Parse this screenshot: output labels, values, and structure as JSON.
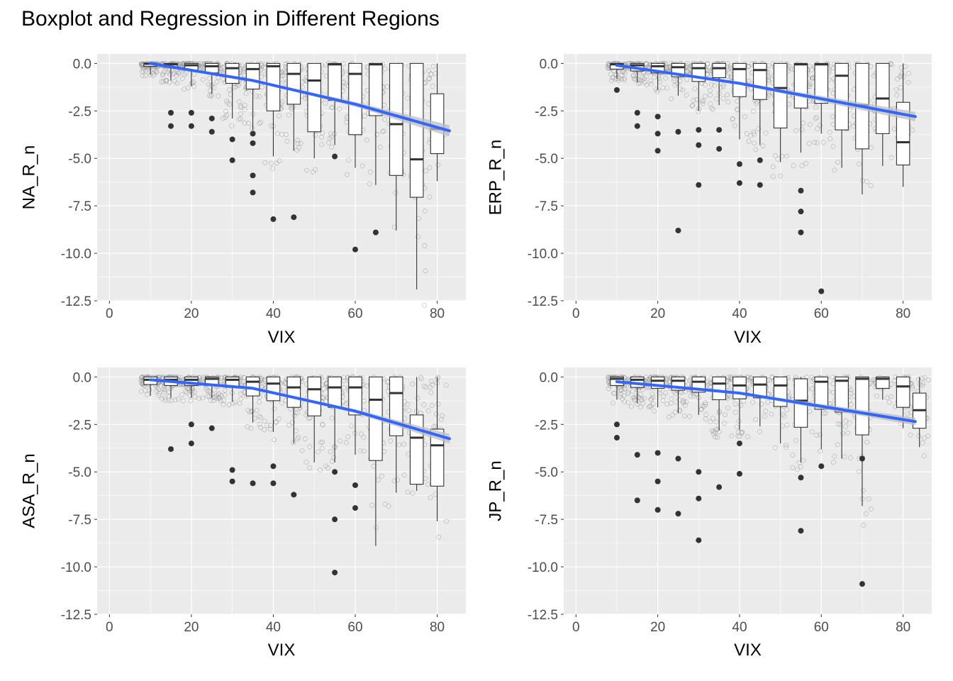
{
  "title": "Boxplot and Regression in Different Regions",
  "colors": {
    "panel_bg": "#ebebeb",
    "grid": "#ffffff",
    "box_fill": "#ffffff",
    "box_line": "#333333",
    "outlier": "#333333",
    "raw_point": "#555555",
    "reg_line": "#3366ff",
    "ci_band": "#bdbdbd",
    "tick_text": "#4d4d4d"
  },
  "chart_data": [
    {
      "type": "boxplot+scatter+regression",
      "name": "na",
      "xlabel": "VIX",
      "ylabel": "NA_R_n",
      "xlim": [
        -3,
        87
      ],
      "ylim": [
        -12.5,
        0.5
      ],
      "x_ticks": [
        0,
        20,
        40,
        60,
        80
      ],
      "x_tick_labels": [
        "0",
        "20",
        "40",
        "60",
        "80"
      ],
      "y_ticks": [
        0,
        -2.5,
        -5,
        -7.5,
        -10,
        -12.5
      ],
      "y_tick_labels": [
        "0.0",
        "-2.5",
        "-5.0",
        "-7.5",
        "-10.0",
        "-12.5"
      ],
      "boxes": [
        {
          "x": 10,
          "q1": -0.15,
          "median": -0.02,
          "q3": 0,
          "whisker_low": -0.6,
          "whisker_high": 0
        },
        {
          "x": 15,
          "q1": -0.2,
          "median": -0.05,
          "q3": 0,
          "whisker_low": -0.9,
          "whisker_high": 0
        },
        {
          "x": 20,
          "q1": -0.35,
          "median": -0.1,
          "q3": 0,
          "whisker_low": -1.2,
          "whisker_high": 0
        },
        {
          "x": 25,
          "q1": -0.5,
          "median": -0.15,
          "q3": 0,
          "whisker_low": -1.6,
          "whisker_high": 0
        },
        {
          "x": 30,
          "q1": -1.05,
          "median": -0.25,
          "q3": 0,
          "whisker_low": -2.9,
          "whisker_high": 0
        },
        {
          "x": 35,
          "q1": -1.35,
          "median": -0.3,
          "q3": 0,
          "whisker_low": -3.5,
          "whisker_high": 0
        },
        {
          "x": 40,
          "q1": -2.5,
          "median": -0.15,
          "q3": 0,
          "whisker_low": -4.9,
          "whisker_high": 0
        },
        {
          "x": 45,
          "q1": -2.15,
          "median": -0.55,
          "q3": 0,
          "whisker_low": -4.6,
          "whisker_high": 0
        },
        {
          "x": 50,
          "q1": -3.6,
          "median": -0.9,
          "q3": 0,
          "whisker_low": -5.0,
          "whisker_high": 0
        },
        {
          "x": 55,
          "q1": -1.95,
          "median": -0.05,
          "q3": 0,
          "whisker_low": -4.3,
          "whisker_high": 0
        },
        {
          "x": 60,
          "q1": -3.75,
          "median": -0.55,
          "q3": 0,
          "whisker_low": -5.5,
          "whisker_high": 0
        },
        {
          "x": 65,
          "q1": -2.75,
          "median": -0.05,
          "q3": 0,
          "whisker_low": -6.4,
          "whisker_high": 0
        },
        {
          "x": 70,
          "q1": -5.9,
          "median": -3.2,
          "q3": 0,
          "whisker_low": -8.8,
          "whisker_high": 0
        },
        {
          "x": 75,
          "q1": -7.05,
          "median": -5.05,
          "q3": 0,
          "whisker_low": -11.9,
          "whisker_high": 0
        },
        {
          "x": 80,
          "q1": -4.75,
          "median": -3.45,
          "q3": -1.6,
          "whisker_low": -6.2,
          "whisker_high": 0
        }
      ],
      "outliers": [
        {
          "x": 15,
          "y": -2.6
        },
        {
          "x": 15,
          "y": -3.3
        },
        {
          "x": 20,
          "y": -2.6
        },
        {
          "x": 20,
          "y": -3.3
        },
        {
          "x": 25,
          "y": -2.9
        },
        {
          "x": 25,
          "y": -3.6
        },
        {
          "x": 30,
          "y": -4.0
        },
        {
          "x": 30,
          "y": -5.1
        },
        {
          "x": 35,
          "y": -3.7
        },
        {
          "x": 35,
          "y": -4.2
        },
        {
          "x": 35,
          "y": -5.9
        },
        {
          "x": 35,
          "y": -6.8
        },
        {
          "x": 40,
          "y": -8.2
        },
        {
          "x": 45,
          "y": -8.1
        },
        {
          "x": 55,
          "y": -4.9
        },
        {
          "x": 60,
          "y": -9.8
        },
        {
          "x": 65,
          "y": -8.9
        }
      ],
      "regression": [
        {
          "x": 10,
          "y": 0.0
        },
        {
          "x": 35,
          "y": -0.9
        },
        {
          "x": 60,
          "y": -2.15
        },
        {
          "x": 83,
          "y": -3.55
        }
      ],
      "ci_halfwidth": [
        0.03,
        0.04,
        0.12,
        0.3
      ]
    },
    {
      "type": "boxplot+scatter+regression",
      "name": "erp",
      "xlabel": "VIX",
      "ylabel": "ERP_R_n",
      "xlim": [
        -3,
        87
      ],
      "ylim": [
        -12.5,
        0.5
      ],
      "x_ticks": [
        0,
        20,
        40,
        60,
        80
      ],
      "x_tick_labels": [
        "0",
        "20",
        "40",
        "60",
        "80"
      ],
      "y_ticks": [
        0,
        -2.5,
        -5,
        -7.5,
        -10,
        -12.5
      ],
      "y_tick_labels": [
        "0.0",
        "-2.5",
        "-5.0",
        "-7.5",
        "-10.0",
        "-12.5"
      ],
      "boxes": [
        {
          "x": 10,
          "q1": -0.3,
          "median": -0.05,
          "q3": 0,
          "whisker_low": -0.8,
          "whisker_high": 0
        },
        {
          "x": 15,
          "q1": -0.4,
          "median": -0.1,
          "q3": 0,
          "whisker_low": -1.0,
          "whisker_high": 0
        },
        {
          "x": 20,
          "q1": -0.5,
          "median": -0.15,
          "q3": 0,
          "whisker_low": -1.4,
          "whisker_high": 0
        },
        {
          "x": 25,
          "q1": -0.7,
          "median": -0.2,
          "q3": 0,
          "whisker_low": -1.7,
          "whisker_high": 0
        },
        {
          "x": 30,
          "q1": -0.95,
          "median": -0.25,
          "q3": 0,
          "whisker_low": -2.5,
          "whisker_high": 0
        },
        {
          "x": 35,
          "q1": -0.75,
          "median": -0.25,
          "q3": 0,
          "whisker_low": -2.2,
          "whisker_high": 0
        },
        {
          "x": 40,
          "q1": -1.75,
          "median": -0.3,
          "q3": 0,
          "whisker_low": -4.0,
          "whisker_high": 0
        },
        {
          "x": 45,
          "q1": -1.9,
          "median": -0.35,
          "q3": 0,
          "whisker_low": -4.3,
          "whisker_high": 0
        },
        {
          "x": 50,
          "q1": -3.4,
          "median": -1.3,
          "q3": 0,
          "whisker_low": -5.2,
          "whisker_high": 0
        },
        {
          "x": 55,
          "q1": -2.35,
          "median": -0.05,
          "q3": 0,
          "whisker_low": -4.7,
          "whisker_high": 0
        },
        {
          "x": 60,
          "q1": -2.1,
          "median": -0.05,
          "q3": 0,
          "whisker_low": -3.7,
          "whisker_high": 0
        },
        {
          "x": 65,
          "q1": -3.5,
          "median": -0.65,
          "q3": 0,
          "whisker_low": -5.5,
          "whisker_high": 0
        },
        {
          "x": 70,
          "q1": -4.5,
          "median": -2.2,
          "q3": 0,
          "whisker_low": -6.9,
          "whisker_high": 0
        },
        {
          "x": 75,
          "q1": -3.7,
          "median": -1.85,
          "q3": 0,
          "whisker_low": -5.4,
          "whisker_high": 0
        },
        {
          "x": 80,
          "q1": -5.35,
          "median": -4.15,
          "q3": -2.05,
          "whisker_low": -6.5,
          "whisker_high": 0
        }
      ],
      "outliers": [
        {
          "x": 10,
          "y": -1.4
        },
        {
          "x": 15,
          "y": -2.6
        },
        {
          "x": 15,
          "y": -3.3
        },
        {
          "x": 20,
          "y": -2.8
        },
        {
          "x": 20,
          "y": -3.7
        },
        {
          "x": 20,
          "y": -4.6
        },
        {
          "x": 25,
          "y": -3.6
        },
        {
          "x": 25,
          "y": -8.8
        },
        {
          "x": 30,
          "y": -3.5
        },
        {
          "x": 30,
          "y": -4.3
        },
        {
          "x": 30,
          "y": -6.4
        },
        {
          "x": 35,
          "y": -3.5
        },
        {
          "x": 35,
          "y": -4.5
        },
        {
          "x": 40,
          "y": -5.3
        },
        {
          "x": 40,
          "y": -6.3
        },
        {
          "x": 45,
          "y": -5.1
        },
        {
          "x": 45,
          "y": -6.4
        },
        {
          "x": 55,
          "y": -6.7
        },
        {
          "x": 55,
          "y": -7.8
        },
        {
          "x": 55,
          "y": -8.9
        },
        {
          "x": 60,
          "y": -12.0
        }
      ],
      "regression": [
        {
          "x": 10,
          "y": -0.1
        },
        {
          "x": 40,
          "y": -1.05
        },
        {
          "x": 83,
          "y": -2.8
        }
      ],
      "ci_halfwidth": [
        0.04,
        0.06,
        0.25
      ]
    },
    {
      "type": "boxplot+scatter+regression",
      "name": "asa",
      "xlabel": "VIX",
      "ylabel": "ASA_R_n",
      "xlim": [
        -3,
        87
      ],
      "ylim": [
        -12.5,
        0.5
      ],
      "x_ticks": [
        0,
        20,
        40,
        60,
        80
      ],
      "x_tick_labels": [
        "0",
        "20",
        "40",
        "60",
        "80"
      ],
      "y_ticks": [
        0,
        -2.5,
        -5,
        -7.5,
        -10,
        -12.5
      ],
      "y_tick_labels": [
        "0.0",
        "-2.5",
        "-5.0",
        "-7.5",
        "-10.0",
        "-12.5"
      ],
      "boxes": [
        {
          "x": 10,
          "q1": -0.4,
          "median": -0.15,
          "q3": 0,
          "whisker_low": -1.0,
          "whisker_high": 0
        },
        {
          "x": 15,
          "q1": -0.45,
          "median": -0.15,
          "q3": 0,
          "whisker_low": -1.1,
          "whisker_high": 0
        },
        {
          "x": 20,
          "q1": -0.45,
          "median": -0.15,
          "q3": 0,
          "whisker_low": -1.1,
          "whisker_high": 0
        },
        {
          "x": 25,
          "q1": -0.45,
          "median": -0.1,
          "q3": 0,
          "whisker_low": -1.1,
          "whisker_high": 0
        },
        {
          "x": 30,
          "q1": -0.55,
          "median": -0.15,
          "q3": 0,
          "whisker_low": -1.3,
          "whisker_high": 0
        },
        {
          "x": 35,
          "q1": -1.0,
          "median": -0.25,
          "q3": 0,
          "whisker_low": -2.4,
          "whisker_high": 0
        },
        {
          "x": 40,
          "q1": -1.25,
          "median": -0.35,
          "q3": 0,
          "whisker_low": -2.9,
          "whisker_high": 0
        },
        {
          "x": 45,
          "q1": -1.6,
          "median": -0.55,
          "q3": 0,
          "whisker_low": -3.5,
          "whisker_high": 0
        },
        {
          "x": 50,
          "q1": -2.05,
          "median": -0.65,
          "q3": 0,
          "whisker_low": -4.5,
          "whisker_high": 0
        },
        {
          "x": 55,
          "q1": -1.6,
          "median": -0.55,
          "q3": 0,
          "whisker_low": -4.5,
          "whisker_high": 0
        },
        {
          "x": 60,
          "q1": -2.0,
          "median": -0.55,
          "q3": 0,
          "whisker_low": -4.1,
          "whisker_high": 0
        },
        {
          "x": 65,
          "q1": -4.4,
          "median": -1.2,
          "q3": 0,
          "whisker_low": -8.9,
          "whisker_high": 0
        },
        {
          "x": 70,
          "q1": -3.1,
          "median": -0.85,
          "q3": 0,
          "whisker_low": -6.1,
          "whisker_high": 0
        },
        {
          "x": 75,
          "q1": -5.65,
          "median": -3.2,
          "q3": -2.0,
          "whisker_low": -6.0,
          "whisker_high": 0
        },
        {
          "x": 80,
          "q1": -5.75,
          "median": -3.6,
          "q3": -2.75,
          "whisker_low": -7.6,
          "whisker_high": 0
        }
      ],
      "outliers": [
        {
          "x": 15,
          "y": -3.8
        },
        {
          "x": 20,
          "y": -2.5
        },
        {
          "x": 20,
          "y": -3.5
        },
        {
          "x": 25,
          "y": -2.7
        },
        {
          "x": 30,
          "y": -4.9
        },
        {
          "x": 30,
          "y": -5.5
        },
        {
          "x": 35,
          "y": -5.6
        },
        {
          "x": 40,
          "y": -4.7
        },
        {
          "x": 40,
          "y": -5.6
        },
        {
          "x": 45,
          "y": -6.2
        },
        {
          "x": 55,
          "y": -5.0
        },
        {
          "x": 55,
          "y": -7.5
        },
        {
          "x": 55,
          "y": -10.3
        },
        {
          "x": 60,
          "y": -5.7
        },
        {
          "x": 60,
          "y": -6.9
        }
      ],
      "regression": [
        {
          "x": 10,
          "y": -0.15
        },
        {
          "x": 35,
          "y": -0.6
        },
        {
          "x": 60,
          "y": -1.8
        },
        {
          "x": 83,
          "y": -3.25
        }
      ],
      "ci_halfwidth": [
        0.03,
        0.04,
        0.1,
        0.25
      ]
    },
    {
      "type": "boxplot+scatter+regression",
      "name": "jp",
      "xlabel": "VIX",
      "ylabel": "JP_R_n",
      "xlim": [
        -3,
        87
      ],
      "ylim": [
        -12.5,
        0.5
      ],
      "x_ticks": [
        0,
        20,
        40,
        60,
        80
      ],
      "x_tick_labels": [
        "0",
        "20",
        "40",
        "60",
        "80"
      ],
      "y_ticks": [
        0,
        -2.5,
        -5,
        -7.5,
        -10,
        -12.5
      ],
      "y_tick_labels": [
        "0.0",
        "-2.5",
        "-5.0",
        "-7.5",
        "-10.0",
        "-12.5"
      ],
      "boxes": [
        {
          "x": 10,
          "q1": -0.45,
          "median": -0.1,
          "q3": 0,
          "whisker_low": -1.2,
          "whisker_high": 0
        },
        {
          "x": 15,
          "q1": -0.55,
          "median": -0.15,
          "q3": 0,
          "whisker_low": -1.4,
          "whisker_high": 0
        },
        {
          "x": 20,
          "q1": -0.6,
          "median": -0.2,
          "q3": 0,
          "whisker_low": -1.6,
          "whisker_high": 0
        },
        {
          "x": 25,
          "q1": -0.7,
          "median": -0.2,
          "q3": 0,
          "whisker_low": -1.9,
          "whisker_high": 0
        },
        {
          "x": 30,
          "q1": -0.8,
          "median": -0.25,
          "q3": 0,
          "whisker_low": -2.0,
          "whisker_high": 0
        },
        {
          "x": 35,
          "q1": -1.2,
          "median": -0.35,
          "q3": 0,
          "whisker_low": -2.8,
          "whisker_high": 0
        },
        {
          "x": 40,
          "q1": -1.15,
          "median": -0.45,
          "q3": 0,
          "whisker_low": -2.8,
          "whisker_high": 0
        },
        {
          "x": 45,
          "q1": -1.1,
          "median": -0.4,
          "q3": 0,
          "whisker_low": -2.6,
          "whisker_high": 0
        },
        {
          "x": 50,
          "q1": -1.55,
          "median": -0.45,
          "q3": 0,
          "whisker_low": -3.5,
          "whisker_high": 0
        },
        {
          "x": 55,
          "q1": -2.65,
          "median": -1.25,
          "q3": -0.1,
          "whisker_low": -4.5,
          "whisker_high": 0
        },
        {
          "x": 60,
          "q1": -1.7,
          "median": -0.25,
          "q3": 0,
          "whisker_low": -3.8,
          "whisker_high": 0
        },
        {
          "x": 65,
          "q1": -1.85,
          "median": -0.2,
          "q3": 0,
          "whisker_low": -4.3,
          "whisker_high": 0
        },
        {
          "x": 70,
          "q1": -3.05,
          "median": -0.1,
          "q3": 0,
          "whisker_low": -6.8,
          "whisker_high": 0
        },
        {
          "x": 75,
          "q1": -0.6,
          "median": -0.1,
          "q3": 0,
          "whisker_low": -1.2,
          "whisker_high": 0
        },
        {
          "x": 80,
          "q1": -1.6,
          "median": -0.5,
          "q3": 0,
          "whisker_low": -2.7,
          "whisker_high": 0
        },
        {
          "x": 84,
          "q1": -2.7,
          "median": -1.75,
          "q3": -0.85,
          "whisker_low": -3.7,
          "whisker_high": 0
        }
      ],
      "outliers": [
        {
          "x": 10,
          "y": -2.5
        },
        {
          "x": 10,
          "y": -3.2
        },
        {
          "x": 15,
          "y": -4.1
        },
        {
          "x": 15,
          "y": -6.5
        },
        {
          "x": 20,
          "y": -4.0
        },
        {
          "x": 20,
          "y": -5.5
        },
        {
          "x": 20,
          "y": -7.0
        },
        {
          "x": 25,
          "y": -4.3
        },
        {
          "x": 25,
          "y": -7.2
        },
        {
          "x": 30,
          "y": -5.0
        },
        {
          "x": 30,
          "y": -6.4
        },
        {
          "x": 30,
          "y": -8.6
        },
        {
          "x": 35,
          "y": -5.8
        },
        {
          "x": 40,
          "y": -3.5
        },
        {
          "x": 40,
          "y": -5.1
        },
        {
          "x": 55,
          "y": -5.3
        },
        {
          "x": 55,
          "y": -8.1
        },
        {
          "x": 60,
          "y": -4.7
        },
        {
          "x": 70,
          "y": -4.3
        },
        {
          "x": 70,
          "y": -10.9
        }
      ],
      "regression": [
        {
          "x": 10,
          "y": -0.25
        },
        {
          "x": 40,
          "y": -0.85
        },
        {
          "x": 83,
          "y": -2.35
        }
      ],
      "ci_halfwidth": [
        0.03,
        0.05,
        0.2
      ]
    }
  ]
}
